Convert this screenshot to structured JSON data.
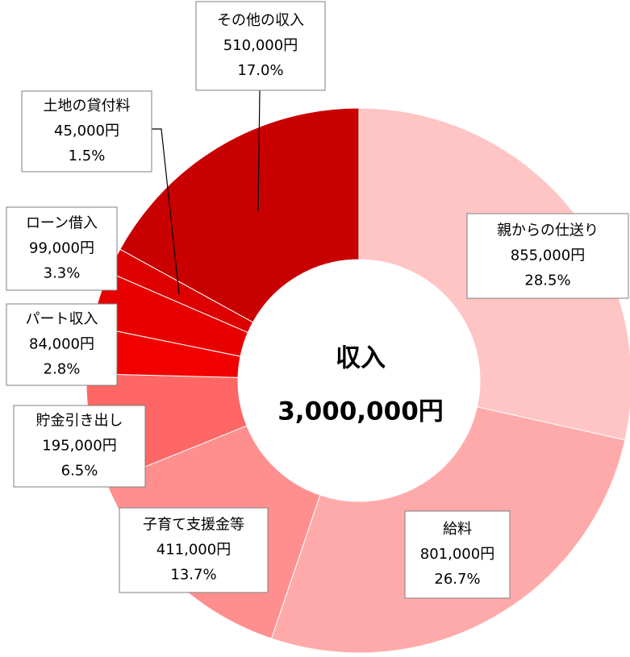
{
  "chart_data": {
    "type": "donut",
    "title": "収入",
    "total": {
      "value": 3000000,
      "label": "3,000,000円"
    },
    "categories": [
      "親からの仕送り",
      "給料",
      "子育て支援金等",
      "貯金引き出し",
      "パート収入",
      "ローン借入",
      "土地の貸付料",
      "その他の収入"
    ],
    "values": [
      855000,
      801000,
      411000,
      195000,
      84000,
      99000,
      45000,
      510000
    ],
    "value_labels": [
      "855,000円",
      "801,000円",
      "411,000円",
      "195,000円",
      "84,000円",
      "99,000円",
      "45,000円",
      "510,000円"
    ],
    "percent_labels": [
      "28.5%",
      "26.7%",
      "13.7%",
      "6.5%",
      "2.8%",
      "3.3%",
      "1.5%",
      "17.0%"
    ],
    "colors": [
      "#ffc4c4",
      "#ffaaaa",
      "#ff8f8f",
      "#ff6666",
      "#f20000",
      "#e80000",
      "#dc0000",
      "#c80000"
    ]
  }
}
